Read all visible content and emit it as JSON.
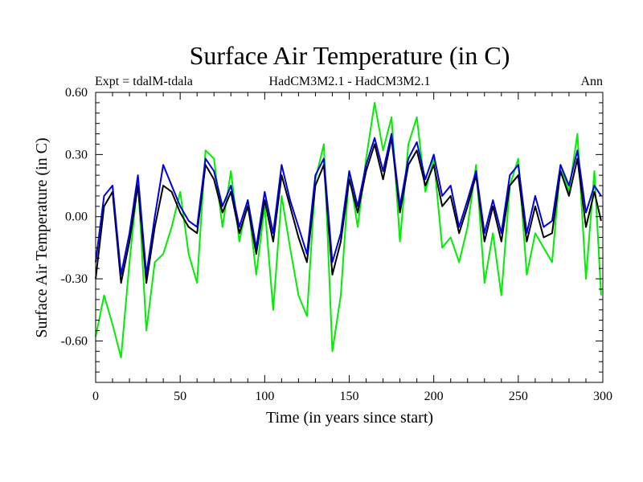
{
  "chart_data": {
    "type": "line",
    "title": "Surface Air Temperature (in C)",
    "subtitle_left": "Expt = tdalM-tdala",
    "subtitle_center": "HadCM3M2.1 - HadCM3M2.1",
    "subtitle_right": "Ann",
    "xlabel": "Time (in years since start)",
    "ylabel": "Surface Air Temperature (in C)",
    "xlim": [
      0,
      300
    ],
    "ylim": [
      -0.8,
      0.6
    ],
    "x_ticks": [
      0,
      50,
      100,
      150,
      200,
      250,
      300
    ],
    "x_tick_labels": [
      "0",
      "50",
      "100",
      "150",
      "200",
      "250",
      "300"
    ],
    "y_ticks": [
      0.6,
      0.3,
      0.0,
      -0.3,
      -0.6
    ],
    "y_tick_labels": [
      "0.60",
      "0.30",
      "0.00",
      "-0.30",
      "-0.60"
    ],
    "grid": false,
    "series": [
      {
        "name": "series-green",
        "color": "#00ee00",
        "x": [
          0,
          5,
          10,
          15,
          20,
          25,
          30,
          35,
          40,
          45,
          50,
          55,
          60,
          65,
          70,
          75,
          80,
          85,
          90,
          95,
          100,
          105,
          110,
          115,
          120,
          125,
          130,
          135,
          140,
          145,
          150,
          155,
          160,
          165,
          170,
          175,
          180,
          185,
          190,
          195,
          200,
          205,
          210,
          215,
          220,
          225,
          230,
          235,
          240,
          245,
          250,
          255,
          260,
          265,
          270,
          275,
          280,
          285,
          290,
          295,
          299
        ],
        "values": [
          -0.58,
          -0.38,
          -0.52,
          -0.68,
          -0.22,
          0.18,
          -0.55,
          -0.22,
          -0.18,
          -0.05,
          0.12,
          -0.18,
          -0.32,
          0.32,
          0.28,
          -0.05,
          0.22,
          -0.12,
          0.08,
          -0.28,
          0.05,
          -0.45,
          0.1,
          -0.15,
          -0.38,
          -0.48,
          0.18,
          0.35,
          -0.65,
          -0.38,
          0.22,
          -0.05,
          0.28,
          0.55,
          0.32,
          0.48,
          -0.12,
          0.35,
          0.48,
          0.12,
          0.28,
          -0.15,
          -0.1,
          -0.22,
          -0.05,
          0.25,
          -0.32,
          -0.08,
          -0.38,
          0.15,
          0.28,
          -0.28,
          -0.08,
          -0.15,
          -0.22,
          0.25,
          0.12,
          0.4,
          -0.3,
          0.22,
          -0.38
        ]
      },
      {
        "name": "series-black",
        "color": "#000000",
        "x": [
          0,
          5,
          10,
          15,
          20,
          25,
          30,
          35,
          40,
          45,
          50,
          55,
          60,
          65,
          70,
          75,
          80,
          85,
          90,
          95,
          100,
          105,
          110,
          115,
          120,
          125,
          130,
          135,
          140,
          145,
          150,
          155,
          160,
          165,
          170,
          175,
          180,
          185,
          190,
          195,
          200,
          205,
          210,
          215,
          220,
          225,
          230,
          235,
          240,
          245,
          250,
          255,
          260,
          265,
          270,
          275,
          280,
          285,
          290,
          295,
          299
        ],
        "values": [
          -0.3,
          0.05,
          0.12,
          -0.32,
          -0.12,
          0.15,
          -0.32,
          -0.05,
          0.15,
          0.12,
          0.02,
          -0.05,
          -0.08,
          0.25,
          0.18,
          0.02,
          0.12,
          -0.08,
          0.05,
          -0.18,
          0.08,
          -0.12,
          0.2,
          0.05,
          -0.1,
          -0.22,
          0.15,
          0.25,
          -0.28,
          -0.12,
          0.18,
          0.02,
          0.22,
          0.35,
          0.18,
          0.38,
          0.02,
          0.25,
          0.32,
          0.15,
          0.25,
          0.05,
          0.1,
          -0.08,
          0.05,
          0.2,
          -0.12,
          0.05,
          -0.12,
          0.15,
          0.2,
          -0.12,
          0.05,
          -0.1,
          -0.08,
          0.22,
          0.1,
          0.28,
          -0.05,
          0.12,
          -0.02
        ]
      },
      {
        "name": "series-blue",
        "color": "#0000dd",
        "x": [
          0,
          5,
          10,
          15,
          20,
          25,
          30,
          35,
          40,
          45,
          50,
          55,
          60,
          65,
          70,
          75,
          80,
          85,
          90,
          95,
          100,
          105,
          110,
          115,
          120,
          125,
          130,
          135,
          140,
          145,
          150,
          155,
          160,
          165,
          170,
          175,
          180,
          185,
          190,
          195,
          200,
          205,
          210,
          215,
          220,
          225,
          230,
          235,
          240,
          245,
          250,
          255,
          260,
          265,
          270,
          275,
          280,
          285,
          290,
          295,
          299
        ],
        "values": [
          -0.22,
          0.1,
          0.15,
          -0.28,
          -0.08,
          0.2,
          -0.28,
          0.0,
          0.25,
          0.15,
          0.05,
          -0.02,
          -0.05,
          0.28,
          0.22,
          0.05,
          0.15,
          -0.05,
          0.08,
          -0.15,
          0.12,
          -0.08,
          0.25,
          0.08,
          -0.05,
          -0.18,
          0.2,
          0.28,
          -0.22,
          -0.08,
          0.22,
          0.05,
          0.25,
          0.38,
          0.22,
          0.4,
          0.05,
          0.28,
          0.36,
          0.18,
          0.3,
          0.1,
          0.15,
          -0.05,
          0.08,
          0.22,
          -0.08,
          0.08,
          -0.08,
          0.2,
          0.25,
          -0.08,
          0.1,
          -0.05,
          -0.02,
          0.25,
          0.15,
          0.32,
          0.02,
          0.15,
          0.1
        ]
      }
    ]
  }
}
